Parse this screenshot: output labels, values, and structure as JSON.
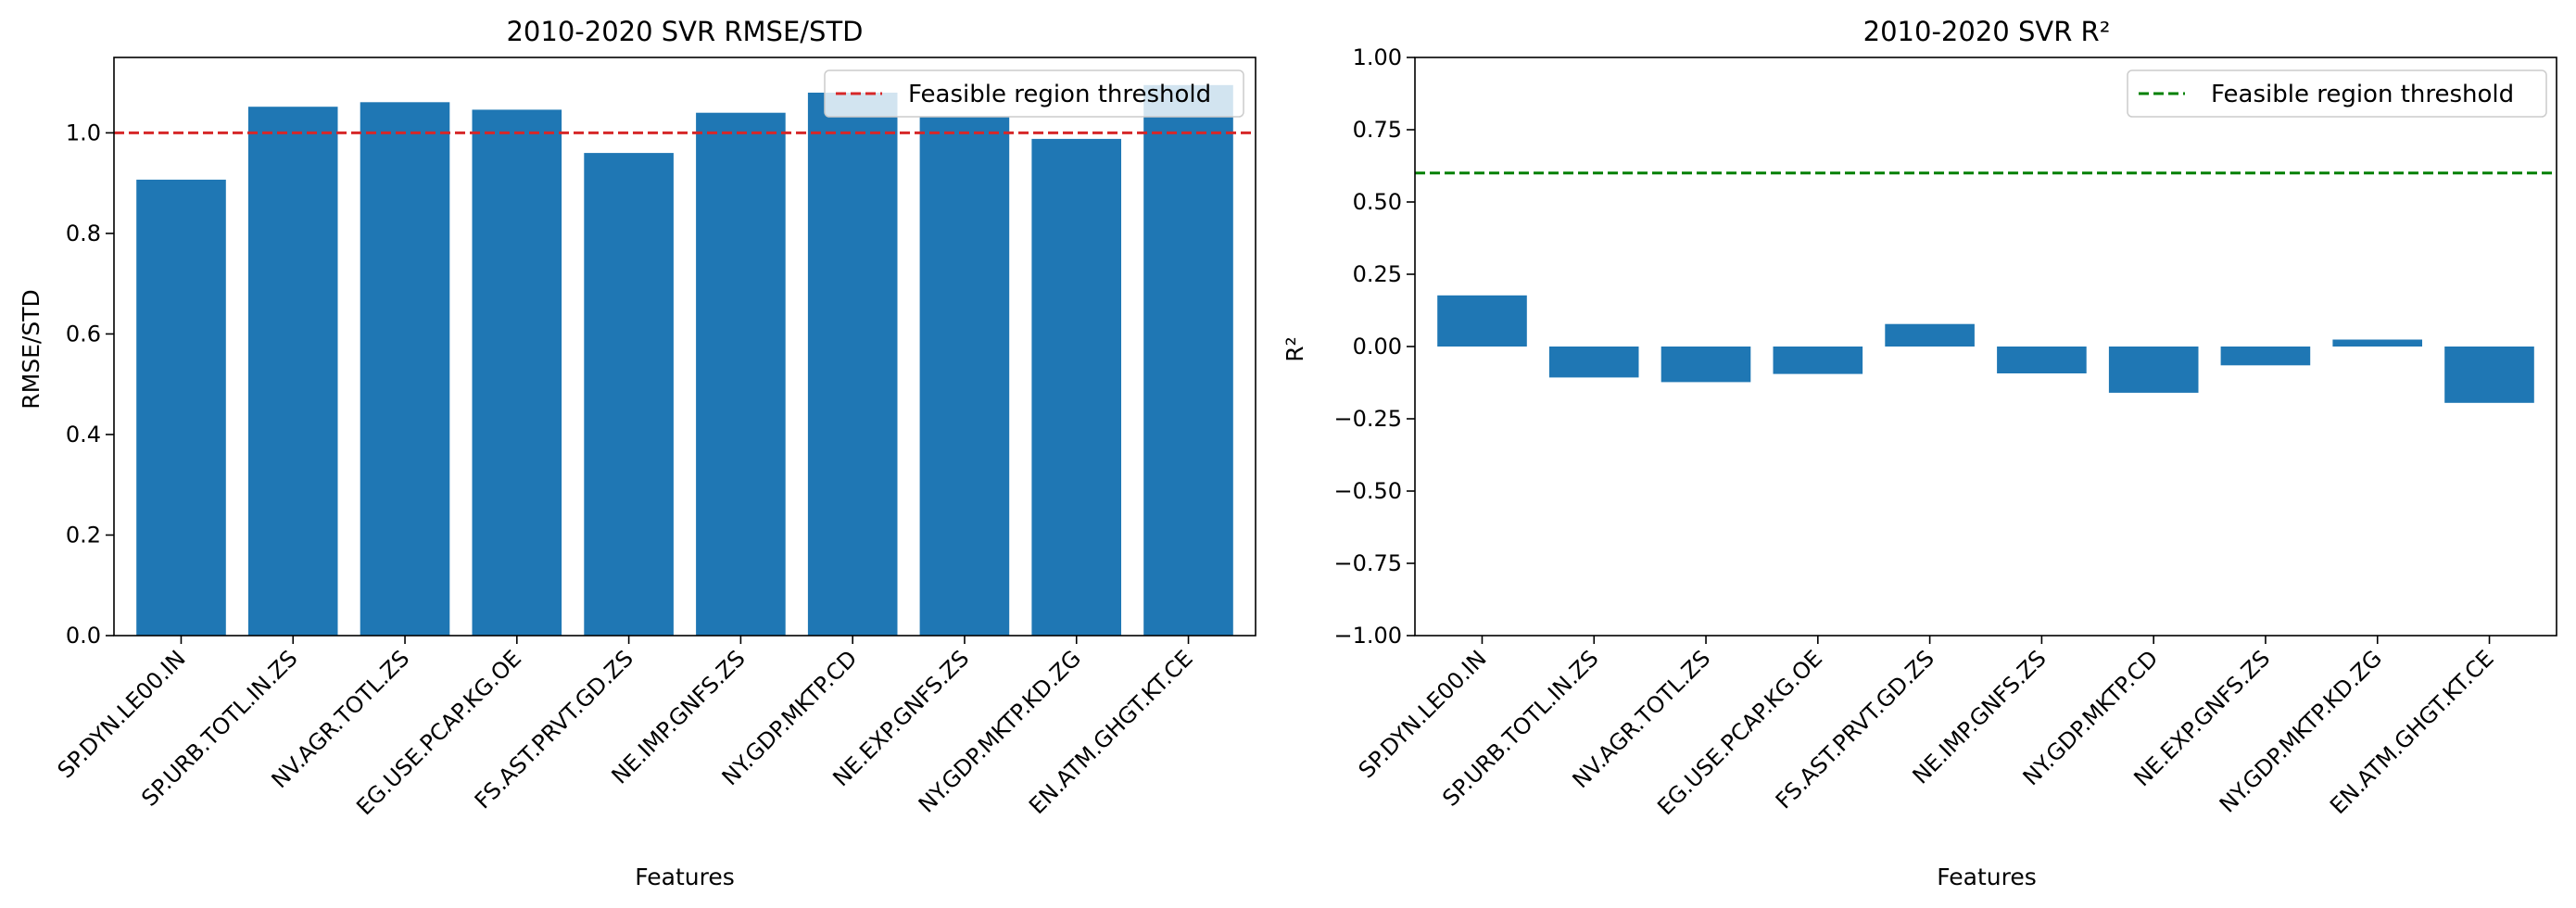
{
  "chart_data": [
    {
      "type": "bar",
      "title": "2010-2020 SVR  RMSE/STD",
      "xlabel": "Features",
      "ylabel": "RMSE/STD",
      "categories": [
        "SP.DYN.LE00.IN",
        "SP.URB.TOTL.IN.ZS",
        "NV.AGR.TOTL.ZS",
        "EG.USE.PCAP.KG.OE",
        "FS.AST.PRVT.GD.ZS",
        "NE.IMP.GNFS.ZS",
        "NY.GDP.MKTP.CD",
        "NE.EXP.GNFS.ZS",
        "NY.GDP.MKTP.KD.ZG",
        "EN.ATM.GHGT.KT.CE"
      ],
      "values": [
        0.907,
        1.052,
        1.061,
        1.046,
        0.96,
        1.04,
        1.08,
        1.032,
        0.988,
        1.095
      ],
      "ylim": [
        0,
        1.15
      ],
      "yticks": [
        0.0,
        0.2,
        0.4,
        0.6,
        0.8,
        1.0
      ],
      "ytick_labels": [
        "0.0",
        "0.2",
        "0.4",
        "0.6",
        "0.8",
        "1.0"
      ],
      "bar_color": "#1f77b4",
      "threshold": {
        "value": 1.0,
        "label": "Feasible region threshold",
        "color": "#d62728",
        "style": "dashed"
      },
      "legend": "top-right",
      "grid": false
    },
    {
      "type": "bar",
      "title": "2010-2020 SVR  R²",
      "xlabel": "Features",
      "ylabel": "R²",
      "categories": [
        "SP.DYN.LE00.IN",
        "SP.URB.TOTL.IN.ZS",
        "NV.AGR.TOTL.ZS",
        "EG.USE.PCAP.KG.OE",
        "FS.AST.PRVT.GD.ZS",
        "NE.IMP.GNFS.ZS",
        "NY.GDP.MKTP.CD",
        "NE.EXP.GNFS.ZS",
        "NY.GDP.MKTP.KD.ZG",
        "EN.ATM.GHGT.KT.CE"
      ],
      "values": [
        0.177,
        -0.107,
        -0.123,
        -0.095,
        0.078,
        -0.093,
        -0.16,
        -0.065,
        0.024,
        -0.195
      ],
      "ylim": [
        -1.0,
        1.0
      ],
      "yticks": [
        -1.0,
        -0.75,
        -0.5,
        -0.25,
        0.0,
        0.25,
        0.5,
        0.75,
        1.0
      ],
      "ytick_labels": [
        "−1.00",
        "−0.75",
        "−0.50",
        "−0.25",
        "0.00",
        "0.25",
        "0.50",
        "0.75",
        "1.00"
      ],
      "bar_color": "#1f77b4",
      "threshold": {
        "value": 0.6,
        "label": "Feasible region threshold",
        "color": "#008000",
        "style": "dashed"
      },
      "legend": "top-right",
      "grid": false
    }
  ]
}
